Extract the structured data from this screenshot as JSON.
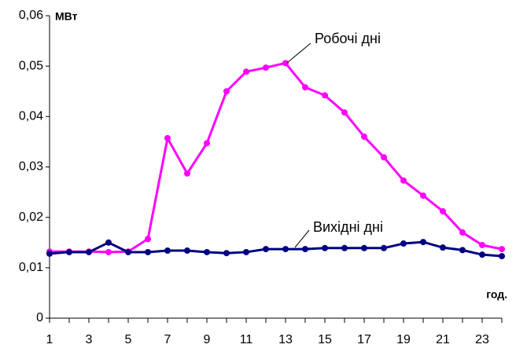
{
  "chart_data": {
    "type": "line",
    "y_label": "МВт",
    "x_label": "год.",
    "x": [
      1,
      2,
      3,
      4,
      5,
      6,
      7,
      8,
      9,
      10,
      11,
      12,
      13,
      14,
      15,
      16,
      17,
      18,
      19,
      20,
      21,
      22,
      23,
      24
    ],
    "series": [
      {
        "name": "Робочі дні",
        "color": "#ff00ff",
        "values": [
          0.0132,
          0.0132,
          0.0132,
          0.0131,
          0.0132,
          0.0157,
          0.0357,
          0.0287,
          0.0347,
          0.045,
          0.0489,
          0.0497,
          0.0506,
          0.0458,
          0.0442,
          0.0408,
          0.036,
          0.0319,
          0.0273,
          0.0243,
          0.0212,
          0.017,
          0.0145,
          0.0137
        ]
      },
      {
        "name": "Вихідні дні",
        "color": "#000080",
        "values": [
          0.0128,
          0.0131,
          0.0131,
          0.015,
          0.0131,
          0.0131,
          0.0134,
          0.0134,
          0.0131,
          0.0129,
          0.0131,
          0.0137,
          0.0137,
          0.0137,
          0.0139,
          0.0139,
          0.0139,
          0.0139,
          0.0148,
          0.0151,
          0.014,
          0.0135,
          0.0126,
          0.0123
        ]
      }
    ],
    "xlim": [
      1,
      24
    ],
    "xticks": [
      1,
      3,
      5,
      7,
      9,
      11,
      13,
      15,
      17,
      19,
      21,
      23
    ],
    "ylim": [
      0,
      0.06
    ],
    "yticks": [
      0,
      {
        "value": 0.01,
        "label": "0,01"
      },
      {
        "value": 0.02,
        "label": "0,02"
      },
      {
        "value": 0.03,
        "label": "0,03"
      },
      {
        "value": 0.04,
        "label": "0,04"
      },
      {
        "value": 0.05,
        "label": "0,05"
      },
      {
        "value": 0.06,
        "label": "0,06"
      }
    ],
    "grid": false
  }
}
